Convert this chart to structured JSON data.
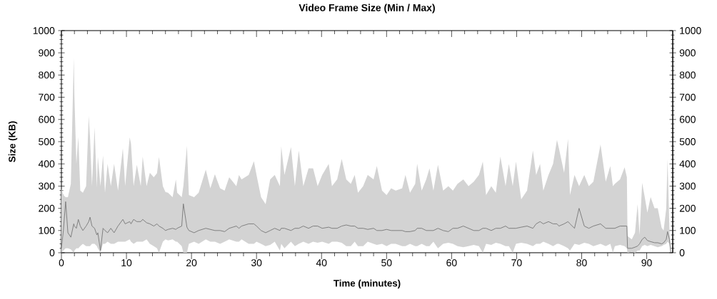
{
  "chart_data": {
    "type": "line",
    "title": "Video Frame Size (Min / Max)",
    "xlabel": "Time (minutes)",
    "ylabel": "Size (KB)",
    "xlim": [
      0,
      94
    ],
    "xticks": [
      0,
      10,
      20,
      30,
      40,
      50,
      60,
      70,
      80,
      90
    ],
    "ylim": [
      0,
      1000
    ],
    "yticks": [
      0,
      100,
      200,
      300,
      400,
      500,
      600,
      700,
      800,
      900,
      1000
    ],
    "y2lim": [
      0,
      1000
    ],
    "y2ticks": [
      0,
      100,
      200,
      300,
      400,
      500,
      600,
      700,
      800,
      900,
      1000
    ],
    "series": [
      {
        "color": "#7a7a7a",
        "x": [
          0.0,
          0.3,
          0.65,
          1.0,
          1.45,
          1.9,
          2.0,
          2.3,
          2.6,
          2.9,
          3.3,
          3.8,
          4.2,
          4.4,
          4.7,
          5.1,
          5.45,
          5.6,
          6.0,
          6.4,
          6.7,
          7.1,
          7.6,
          8.1,
          8.7,
          9.45,
          9.8,
          10.5,
          10.7,
          11.1,
          11.6,
          12.2,
          12.5,
          13.1,
          13.6,
          14.2,
          14.7,
          15.0,
          15.6,
          16.0,
          16.4,
          17.1,
          17.6,
          17.8,
          18.5,
          18.75,
          19.3,
          19.6,
          20.4,
          21.1,
          22.2,
          22.9,
          23.6,
          24.4,
          25.1,
          25.8,
          26.9,
          27.3,
          27.7,
          28.8,
          29.6,
          30.0,
          30.7,
          31.4,
          32.1,
          32.8,
          33.6,
          33.8,
          34.3,
          35.3,
          35.9,
          36.5,
          37.2,
          38.0,
          38.7,
          39.4,
          40.1,
          41.1,
          41.6,
          42.4,
          43.1,
          43.8,
          44.5,
          45.1,
          45.6,
          46.4,
          47.1,
          48.0,
          48.5,
          49.3,
          50.0,
          50.7,
          51.4,
          52.4,
          52.9,
          53.6,
          54.4,
          54.7,
          55.4,
          56.1,
          56.6,
          57.2,
          57.9,
          58.7,
          59.5,
          60.2,
          60.9,
          61.8,
          62.6,
          63.4,
          64.2,
          64.8,
          65.3,
          66.1,
          66.8,
          67.5,
          68.3,
          68.8,
          69.4,
          69.9,
          70.7,
          71.6,
          72.5,
          73.0,
          73.6,
          74.1,
          74.9,
          75.6,
          76.2,
          76.5,
          77.3,
          77.9,
          78.2,
          78.9,
          79.6,
          80.4,
          81.1,
          81.8,
          82.9,
          83.7,
          84.4,
          84.8,
          85.1,
          85.9,
          86.6,
          86.95,
          87.05,
          87.7,
          88.2,
          88.6,
          88.9,
          89.3,
          89.7,
          90.1,
          90.6,
          91.2,
          91.7,
          92.3,
          92.6,
          93.0,
          93.2,
          93.5,
          93.7
        ],
        "values": [
          20,
          100,
          230,
          90,
          70,
          130,
          120,
          110,
          150,
          120,
          100,
          120,
          140,
          160,
          120,
          110,
          80,
          90,
          10,
          110,
          100,
          90,
          110,
          90,
          120,
          150,
          130,
          140,
          130,
          150,
          140,
          140,
          150,
          135,
          130,
          120,
          130,
          120,
          110,
          100,
          105,
          110,
          105,
          110,
          120,
          220,
          115,
          100,
          90,
          100,
          110,
          105,
          100,
          100,
          95,
          110,
          120,
          110,
          120,
          130,
          130,
          120,
          100,
          90,
          100,
          110,
          100,
          110,
          110,
          100,
          110,
          110,
          120,
          110,
          120,
          120,
          110,
          115,
          110,
          110,
          120,
          125,
          120,
          120,
          110,
          110,
          105,
          110,
          100,
          100,
          105,
          100,
          100,
          100,
          95,
          95,
          100,
          110,
          110,
          100,
          100,
          100,
          110,
          100,
          95,
          110,
          110,
          120,
          110,
          100,
          100,
          110,
          110,
          100,
          110,
          110,
          120,
          110,
          110,
          110,
          115,
          120,
          110,
          130,
          140,
          130,
          140,
          130,
          130,
          120,
          130,
          140,
          130,
          110,
          200,
          120,
          110,
          120,
          130,
          110,
          110,
          110,
          110,
          120,
          120,
          120,
          20,
          20,
          25,
          30,
          40,
          60,
          70,
          55,
          50,
          45,
          45,
          40,
          45,
          60,
          95,
          60,
          0
        ],
        "lower": [
          0,
          10,
          20,
          20,
          15,
          0,
          10,
          20,
          20,
          30,
          40,
          30,
          30,
          30,
          40,
          40,
          30,
          20,
          0,
          40,
          40,
          50,
          40,
          40,
          50,
          50,
          50,
          60,
          50,
          40,
          50,
          50,
          50,
          60,
          40,
          30,
          20,
          0,
          50,
          60,
          55,
          60,
          50,
          50,
          30,
          0,
          0,
          40,
          50,
          40,
          60,
          50,
          50,
          40,
          50,
          60,
          50,
          50,
          60,
          40,
          40,
          50,
          40,
          30,
          35,
          50,
          10,
          40,
          20,
          50,
          30,
          40,
          50,
          40,
          50,
          45,
          50,
          40,
          50,
          50,
          45,
          30,
          30,
          50,
          30,
          30,
          50,
          40,
          35,
          40,
          30,
          40,
          40,
          30,
          30,
          40,
          30,
          30,
          40,
          30,
          30,
          50,
          20,
          40,
          45,
          40,
          30,
          25,
          30,
          35,
          30,
          0,
          40,
          35,
          45,
          40,
          30,
          30,
          0,
          40,
          45,
          40,
          30,
          40,
          40,
          50,
          40,
          30,
          40,
          40,
          30,
          20,
          10,
          40,
          35,
          45,
          40,
          30,
          40,
          30,
          40,
          0,
          30,
          35,
          30,
          20,
          0,
          5,
          0,
          10,
          10,
          30,
          35,
          30,
          35,
          30,
          25,
          30,
          35,
          40,
          50,
          40,
          0
        ],
        "upper": [
          290,
          260,
          250,
          250,
          310,
          877,
          706,
          400,
          522,
          280,
          270,
          300,
          615,
          520,
          300,
          565,
          294,
          433,
          300,
          438,
          270,
          401,
          300,
          400,
          280,
          470,
          300,
          519,
          490,
          300,
          396,
          300,
          433,
          300,
          360,
          340,
          358,
          431,
          300,
          273,
          270,
          250,
          330,
          270,
          250,
          300,
          481,
          260,
          250,
          270,
          374,
          290,
          353,
          290,
          280,
          340,
          300,
          350,
          330,
          350,
          412,
          350,
          250,
          219,
          330,
          350,
          300,
          480,
          350,
          476,
          300,
          460,
          300,
          380,
          380,
          300,
          350,
          400,
          300,
          330,
          422,
          330,
          310,
          350,
          270,
          300,
          350,
          330,
          390,
          280,
          260,
          290,
          280,
          290,
          350,
          270,
          310,
          401,
          280,
          330,
          380,
          280,
          396,
          280,
          300,
          280,
          310,
          330,
          300,
          320,
          350,
          410,
          260,
          300,
          270,
          433,
          300,
          400,
          300,
          410,
          240,
          280,
          460,
          350,
          400,
          280,
          350,
          400,
          508,
          470,
          360,
          513,
          260,
          350,
          300,
          350,
          300,
          320,
          487,
          320,
          390,
          300,
          310,
          330,
          385,
          340,
          75,
          60,
          90,
          219,
          80,
          315,
          250,
          180,
          251,
          200,
          200,
          112,
          100,
          198,
          422,
          100,
          0
        ]
      }
    ]
  }
}
